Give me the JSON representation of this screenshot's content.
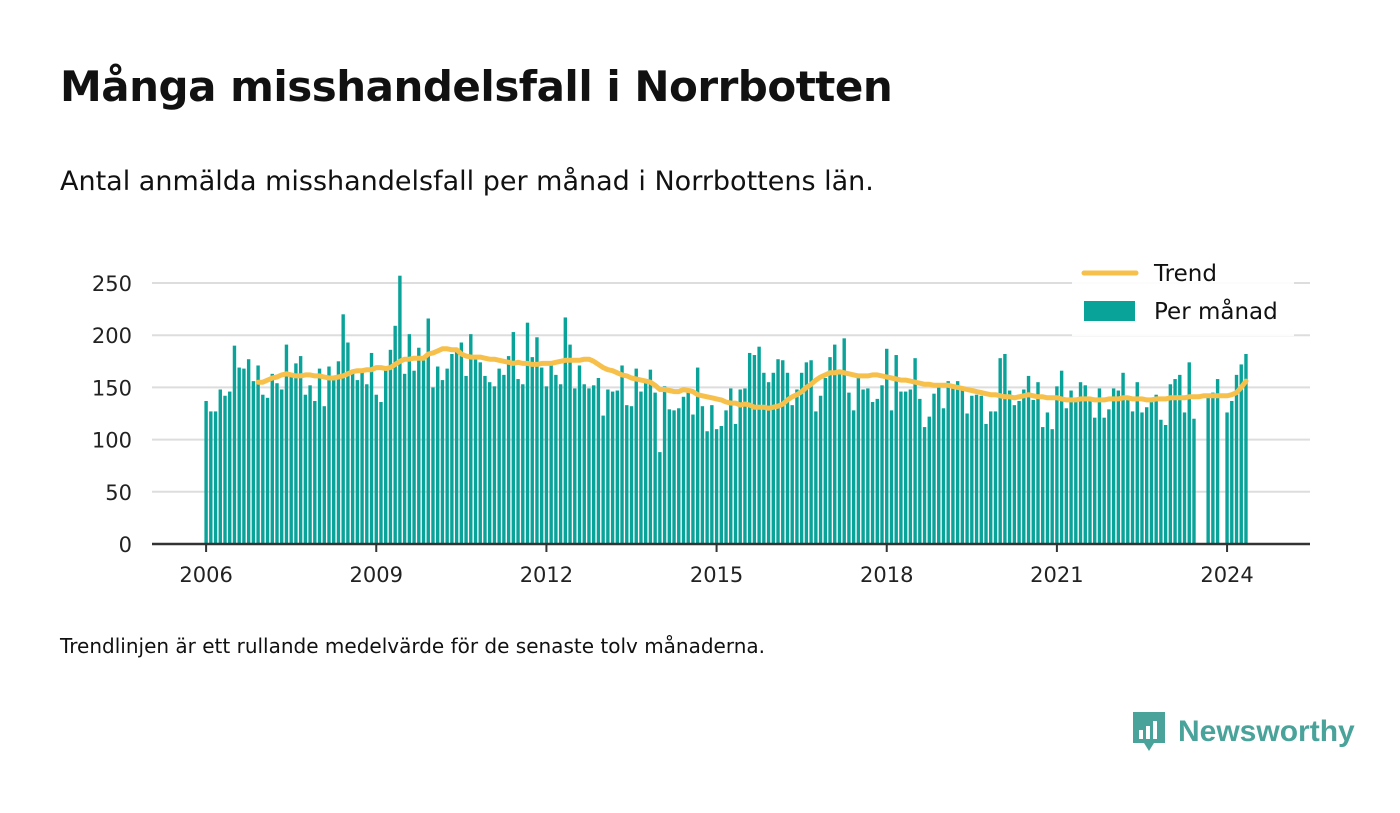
{
  "title": "Många misshandelsfall i Norrbotten",
  "subtitle": "Antal anmälda misshandelsfall per månad i Norrbottens län.",
  "footnote": "Trendlinjen är ett rullande medelvärde för de senaste tolv månaderna.",
  "brand": {
    "name": "Newsworthy",
    "icon": "newsworthy-logo-icon"
  },
  "colors": {
    "bars": "#0aa39a",
    "trend": "#f7c04a",
    "grid": "#dddddd",
    "axis": "#333333",
    "brand": "#4aa39a"
  },
  "chart_data": {
    "type": "bar",
    "x_start": "2006-01",
    "x_end": "2024-07",
    "interval": "month",
    "xticks": [
      "2006",
      "2009",
      "2012",
      "2015",
      "2018",
      "2021",
      "2024"
    ],
    "yticks": [
      "0",
      "50",
      "100",
      "150",
      "200",
      "250"
    ],
    "ylim": [
      0,
      265
    ],
    "grid": true,
    "legend_position": "top-right",
    "series": [
      {
        "name": "Per månad",
        "type": "bar",
        "values": [
          137,
          127,
          127,
          148,
          142,
          146,
          190,
          169,
          168,
          177,
          156,
          171,
          143,
          140,
          163,
          154,
          148,
          191,
          161,
          173,
          180,
          143,
          152,
          137,
          168,
          132,
          170,
          161,
          175,
          220,
          193,
          167,
          157,
          168,
          153,
          183,
          143,
          136,
          167,
          186,
          209,
          257,
          163,
          201,
          166,
          188,
          176,
          216,
          150,
          170,
          157,
          168,
          182,
          186,
          193,
          161,
          201,
          180,
          174,
          161,
          155,
          151,
          168,
          162,
          180,
          203,
          158,
          153,
          212,
          179,
          198,
          169,
          151,
          171,
          162,
          153,
          217,
          191,
          149,
          171,
          153,
          149,
          152,
          159,
          123,
          148,
          146,
          147,
          171,
          133,
          132,
          168,
          146,
          156,
          167,
          145,
          88,
          151,
          129,
          128,
          130,
          141,
          146,
          124,
          169,
          132,
          108,
          133,
          110,
          113,
          128,
          149,
          115,
          148,
          149,
          183,
          181,
          189,
          164,
          155,
          164,
          177,
          176,
          164,
          133,
          148,
          164,
          174,
          176,
          127,
          142,
          159,
          179,
          191,
          164,
          197,
          145,
          128,
          162,
          148,
          149,
          136,
          139,
          152,
          187,
          128,
          181,
          146,
          146,
          148,
          178,
          139,
          112,
          122,
          144,
          152,
          130,
          156,
          151,
          156,
          148,
          125,
          142,
          143,
          142,
          115,
          127,
          127,
          178,
          182,
          147,
          133,
          137,
          148,
          161,
          138,
          155,
          112,
          126,
          110,
          151,
          166,
          130,
          147,
          140,
          155,
          152,
          139,
          121,
          149,
          121,
          129,
          149,
          147,
          164,
          142,
          127,
          155,
          126,
          131,
          139,
          143,
          119,
          114,
          153,
          158,
          162,
          126,
          174,
          120,
          0,
          0,
          141,
          145,
          158,
          0,
          126,
          137,
          162,
          172,
          182
        ]
      },
      {
        "name": "Trend",
        "type": "line",
        "values": [
          null,
          null,
          null,
          null,
          null,
          null,
          null,
          null,
          null,
          null,
          null,
          155,
          155,
          157,
          159,
          160,
          162,
          163,
          162,
          161,
          161,
          162,
          162,
          161,
          161,
          160,
          159,
          159,
          160,
          161,
          163,
          165,
          166,
          166,
          167,
          167,
          169,
          169,
          168,
          169,
          172,
          175,
          177,
          177,
          178,
          178,
          178,
          182,
          183,
          185,
          187,
          187,
          186,
          186,
          182,
          180,
          179,
          179,
          179,
          178,
          177,
          177,
          176,
          175,
          174,
          173,
          174,
          173,
          173,
          172,
          172,
          173,
          173,
          173,
          174,
          175,
          176,
          176,
          176,
          176,
          177,
          177,
          175,
          172,
          169,
          167,
          166,
          164,
          162,
          161,
          159,
          158,
          157,
          156,
          155,
          152,
          148,
          148,
          147,
          146,
          146,
          148,
          147,
          146,
          143,
          142,
          141,
          140,
          139,
          138,
          136,
          135,
          135,
          133,
          134,
          133,
          131,
          131,
          131,
          130,
          131,
          132,
          134,
          138,
          141,
          143,
          146,
          150,
          153,
          157,
          160,
          162,
          164,
          164,
          165,
          164,
          163,
          162,
          161,
          161,
          161,
          162,
          162,
          161,
          160,
          159,
          158,
          157,
          157,
          156,
          155,
          154,
          153,
          153,
          152,
          152,
          152,
          152,
          151,
          150,
          149,
          148,
          147,
          146,
          145,
          144,
          143,
          143,
          142,
          141,
          141,
          140,
          141,
          142,
          143,
          142,
          141,
          141,
          140,
          140,
          140,
          139,
          138,
          138,
          138,
          139,
          139,
          139,
          138,
          138,
          138,
          139,
          139,
          139,
          140,
          140,
          139,
          139,
          139,
          138,
          138,
          139,
          139,
          139,
          140,
          140,
          140,
          140,
          141,
          141,
          141,
          142,
          142,
          142,
          142,
          142,
          142,
          143,
          145,
          150,
          156
        ]
      }
    ]
  }
}
